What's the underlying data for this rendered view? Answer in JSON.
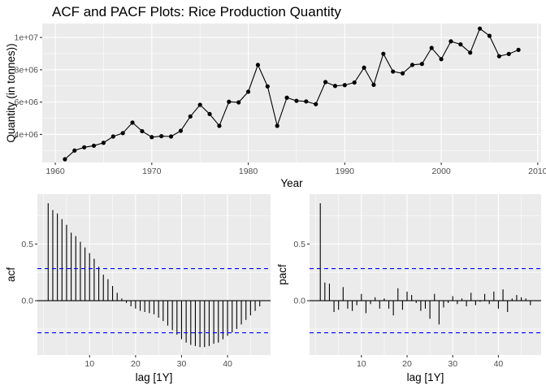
{
  "chart_data": [
    {
      "type": "line",
      "title": "ACF and PACF Plots: Rice Production Quantity",
      "xlabel": "Year",
      "ylabel": "Quantity (in tonnes))",
      "xlim": [
        1958.65,
        2010.35
      ],
      "ylim": [
        2260000,
        10860000
      ],
      "x_ticks": [
        1960,
        1970,
        1980,
        1990,
        2000,
        2010
      ],
      "x_tick_labels": [
        "1960",
        "1970",
        "1980",
        "1990",
        "2000",
        "2010"
      ],
      "y_ticks": [
        4000000,
        6000000,
        8000000,
        10000000
      ],
      "y_tick_labels": [
        "4e+06",
        "6e+06",
        "8e+06",
        "1e+07"
      ],
      "grid": true,
      "series": [
        {
          "x": [
            1961,
            1962,
            1963,
            1964,
            1965,
            1966,
            1967,
            1968,
            1969,
            1970,
            1971,
            1972,
            1973,
            1974,
            1975,
            1976,
            1977,
            1978,
            1979,
            1980,
            1981,
            1982,
            1983,
            1984,
            1985,
            1986,
            1987,
            1988,
            1989,
            1990,
            1991,
            1992,
            1993,
            1994,
            1995,
            1996,
            1997,
            1998,
            1999,
            2000,
            2001,
            2002,
            2003,
            2004,
            2005,
            2006,
            2007,
            2008
          ],
          "values": [
            2460000,
            3000000,
            3200000,
            3300000,
            3480000,
            3870000,
            4080000,
            4730000,
            4200000,
            3830000,
            3890000,
            3870000,
            4220000,
            5110000,
            5830000,
            5260000,
            4530000,
            6020000,
            5980000,
            6640000,
            8300000,
            6970000,
            4530000,
            6270000,
            6080000,
            6040000,
            5870000,
            7240000,
            7000000,
            7050000,
            7210000,
            8130000,
            7070000,
            8990000,
            7890000,
            7780000,
            8300000,
            8360000,
            9350000,
            8660000,
            9760000,
            9570000,
            9060000,
            10550000,
            10100000,
            8840000,
            8980000,
            9230000
          ]
        }
      ]
    },
    {
      "type": "bar",
      "xlabel": "lag [1Y]",
      "ylabel": "acf",
      "xlim": [
        -1.35,
        49.35
      ],
      "ylim": [
        -0.48,
        0.94
      ],
      "x_ticks": [
        10,
        20,
        30,
        40
      ],
      "x_tick_labels": [
        "10",
        "20",
        "30",
        "40"
      ],
      "y_ticks": [
        0.0,
        0.5
      ],
      "y_tick_labels": [
        "0.0",
        "0.5"
      ],
      "confidence_interval": 0.283,
      "grid": true,
      "lags": [
        1,
        2,
        3,
        4,
        5,
        6,
        7,
        8,
        9,
        10,
        11,
        12,
        13,
        14,
        15,
        16,
        17,
        18,
        19,
        20,
        21,
        22,
        23,
        24,
        25,
        26,
        27,
        28,
        29,
        30,
        31,
        32,
        33,
        34,
        35,
        36,
        37,
        38,
        39,
        40,
        41,
        42,
        43,
        44,
        45,
        46,
        47
      ],
      "values": [
        0.86,
        0.8,
        0.77,
        0.72,
        0.67,
        0.6,
        0.57,
        0.52,
        0.47,
        0.42,
        0.37,
        0.3,
        0.23,
        0.19,
        0.13,
        0.07,
        0.02,
        -0.02,
        -0.05,
        -0.07,
        -0.09,
        -0.1,
        -0.11,
        -0.12,
        -0.15,
        -0.18,
        -0.22,
        -0.26,
        -0.3,
        -0.34,
        -0.37,
        -0.39,
        -0.4,
        -0.41,
        -0.41,
        -0.4,
        -0.38,
        -0.37,
        -0.34,
        -0.31,
        -0.28,
        -0.25,
        -0.21,
        -0.17,
        -0.13,
        -0.09,
        -0.05
      ]
    },
    {
      "type": "bar",
      "xlabel": "lag [1Y]",
      "ylabel": "pacf",
      "xlim": [
        -1.35,
        49.35
      ],
      "ylim": [
        -0.48,
        0.94
      ],
      "x_ticks": [
        10,
        20,
        30,
        40
      ],
      "x_tick_labels": [
        "10",
        "20",
        "30",
        "40"
      ],
      "y_ticks": [
        0.0,
        0.5
      ],
      "y_tick_labels": [
        "0.0",
        "0.5"
      ],
      "confidence_interval": 0.283,
      "grid": true,
      "lags": [
        1,
        2,
        3,
        4,
        5,
        6,
        7,
        8,
        9,
        10,
        11,
        12,
        13,
        14,
        15,
        16,
        17,
        18,
        19,
        20,
        21,
        22,
        23,
        24,
        25,
        26,
        27,
        28,
        29,
        30,
        31,
        32,
        33,
        34,
        35,
        36,
        37,
        38,
        39,
        40,
        41,
        42,
        43,
        44,
        45,
        46,
        47
      ],
      "values": [
        0.86,
        0.16,
        0.15,
        -0.1,
        -0.08,
        0.12,
        -0.07,
        -0.09,
        -0.04,
        0.06,
        -0.11,
        -0.03,
        0.03,
        -0.07,
        0.02,
        -0.07,
        -0.13,
        0.11,
        -0.08,
        0.08,
        0.05,
        -0.02,
        -0.09,
        -0.07,
        -0.16,
        0.06,
        -0.21,
        -0.06,
        -0.02,
        0.04,
        -0.03,
        0.02,
        -0.05,
        0.07,
        -0.04,
        -0.01,
        0.06,
        -0.03,
        0.08,
        -0.07,
        0.1,
        -0.1,
        0.02,
        0.05,
        0.03,
        0.02,
        -0.04
      ]
    }
  ]
}
